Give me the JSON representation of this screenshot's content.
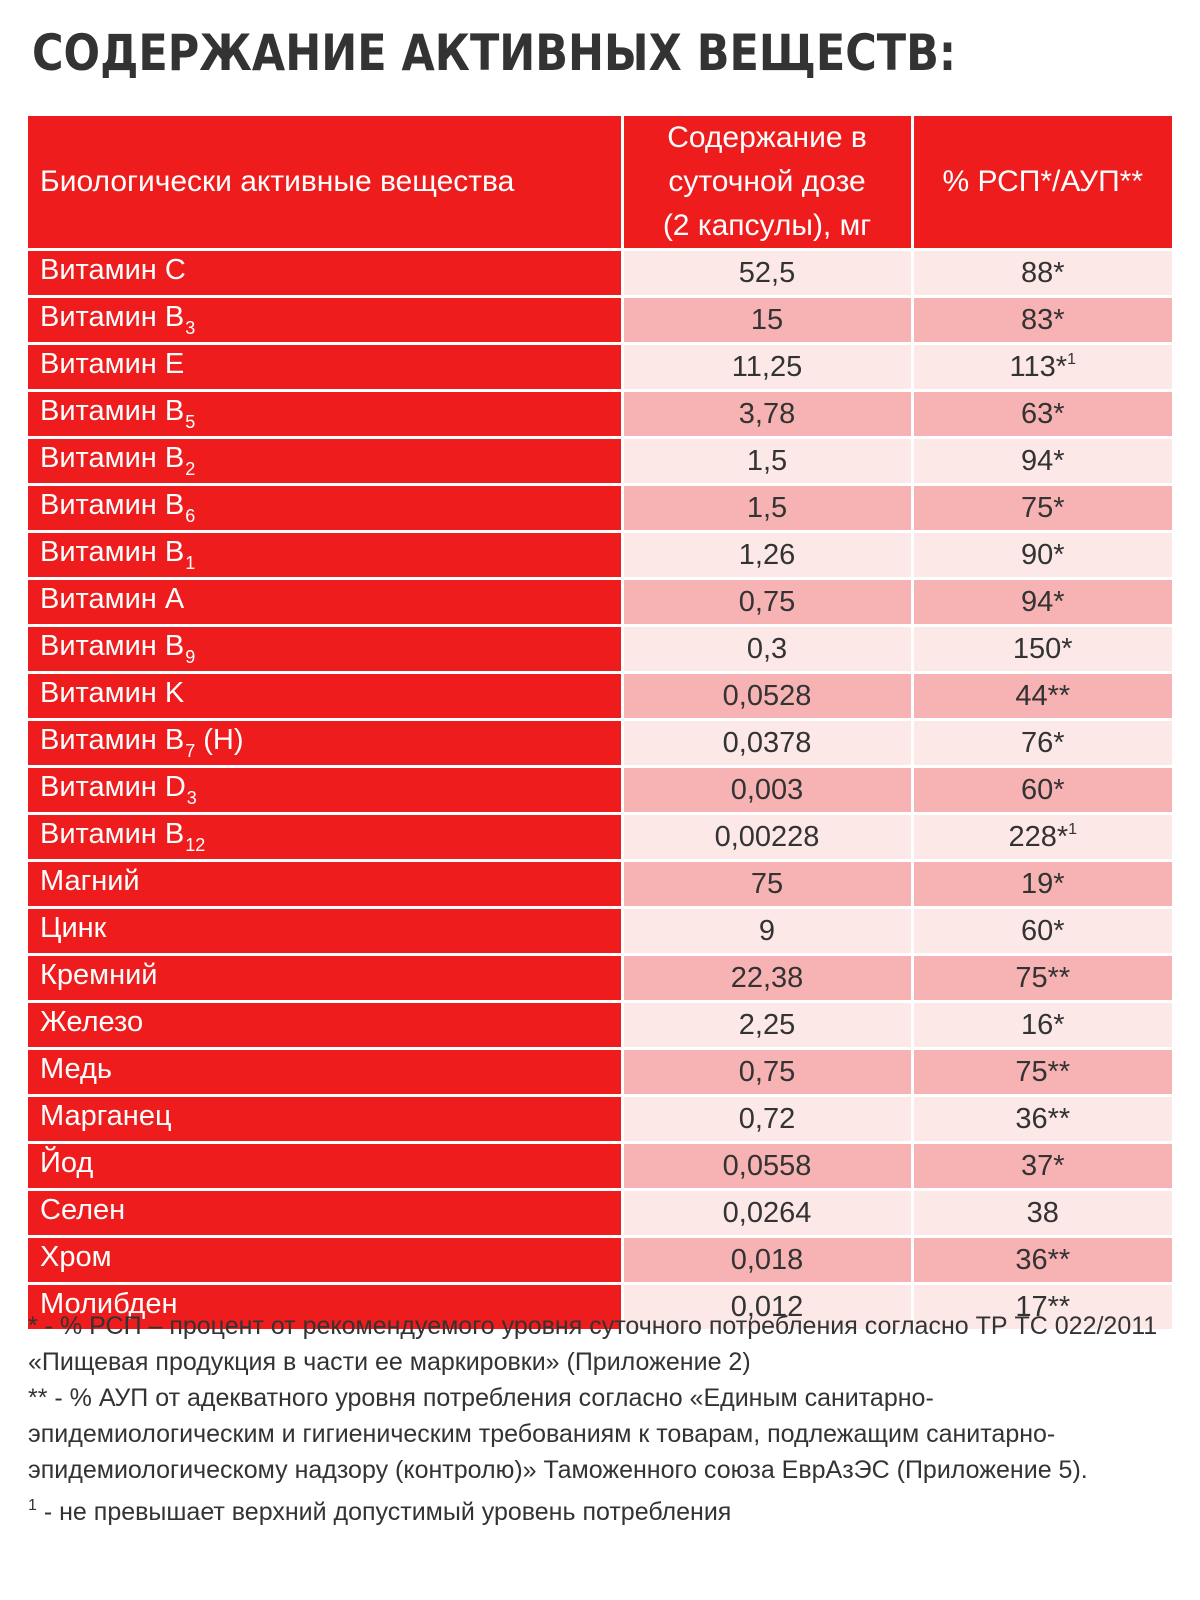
{
  "title": "СОДЕРЖАНИЕ АКТИВНЫХ ВЕЩЕСТВ:",
  "table": {
    "headers": {
      "substance": "Биологически активные вещества",
      "content_line1": "Содержание в",
      "content_line2": "суточной дозе",
      "content_line3": "(2 капсулы), мг",
      "percent": "% РСП*/АУП**"
    },
    "rows": [
      {
        "name": "Витамин C",
        "sub": "",
        "suffix": "",
        "value": "52,5",
        "percent": "88*",
        "percent_sup": ""
      },
      {
        "name": "Витамин B",
        "sub": "3",
        "suffix": "",
        "value": "15",
        "percent": "83*",
        "percent_sup": ""
      },
      {
        "name": "Витамин E",
        "sub": "",
        "suffix": "",
        "value": "11,25",
        "percent": "113*",
        "percent_sup": "1"
      },
      {
        "name": "Витамин B",
        "sub": "5",
        "suffix": "",
        "value": "3,78",
        "percent": "63*",
        "percent_sup": ""
      },
      {
        "name": "Витамин B",
        "sub": "2",
        "suffix": "",
        "value": "1,5",
        "percent": "94*",
        "percent_sup": ""
      },
      {
        "name": "Витамин B",
        "sub": "6",
        "suffix": "",
        "value": "1,5",
        "percent": "75*",
        "percent_sup": ""
      },
      {
        "name": "Витамин B",
        "sub": "1",
        "suffix": "",
        "value": "1,26",
        "percent": "90*",
        "percent_sup": ""
      },
      {
        "name": "Витамин A",
        "sub": "",
        "suffix": "",
        "value": "0,75",
        "percent": "94*",
        "percent_sup": ""
      },
      {
        "name": "Витамин B",
        "sub": "9",
        "suffix": "",
        "value": "0,3",
        "percent": "150*",
        "percent_sup": ""
      },
      {
        "name": "Витамин K",
        "sub": "",
        "suffix": "",
        "value": "0,0528",
        "percent": "44**",
        "percent_sup": ""
      },
      {
        "name": "Витамин B",
        "sub": "7",
        "suffix": " (H)",
        "value": "0,0378",
        "percent": "76*",
        "percent_sup": ""
      },
      {
        "name": "Витамин D",
        "sub": "3",
        "suffix": "",
        "value": "0,003",
        "percent": "60*",
        "percent_sup": ""
      },
      {
        "name": "Витамин B",
        "sub": "12",
        "suffix": "",
        "value": "0,00228",
        "percent": "228*",
        "percent_sup": "1"
      },
      {
        "name": "Магний",
        "sub": "",
        "suffix": "",
        "value": "75",
        "percent": "19*",
        "percent_sup": ""
      },
      {
        "name": "Цинк",
        "sub": "",
        "suffix": "",
        "value": "9",
        "percent": "60*",
        "percent_sup": ""
      },
      {
        "name": "Кремний",
        "sub": "",
        "suffix": "",
        "value": "22,38",
        "percent": "75**",
        "percent_sup": ""
      },
      {
        "name": "Железо",
        "sub": "",
        "suffix": "",
        "value": "2,25",
        "percent": "16*",
        "percent_sup": ""
      },
      {
        "name": "Медь",
        "sub": "",
        "suffix": "",
        "value": "0,75",
        "percent": "75**",
        "percent_sup": ""
      },
      {
        "name": "Марганец",
        "sub": "",
        "suffix": "",
        "value": "0,72",
        "percent": "36**",
        "percent_sup": ""
      },
      {
        "name": "Йод",
        "sub": "",
        "suffix": "",
        "value": "0,0558",
        "percent": "37*",
        "percent_sup": ""
      },
      {
        "name": "Селен",
        "sub": "",
        "suffix": "",
        "value": "0,0264",
        "percent": "38",
        "percent_sup": ""
      },
      {
        "name": "Хром",
        "sub": "",
        "suffix": "",
        "value": "0,018",
        "percent": "36**",
        "percent_sup": ""
      },
      {
        "name": "Молибден",
        "sub": "",
        "suffix": "",
        "value": "0,012",
        "percent": "17**",
        "percent_sup": ""
      }
    ]
  },
  "footnotes": {
    "note1_line1": "* - % РСП – процент от рекомендуемого уровня суточного потребления согласно ТР ТС 022/2011",
    "note1_line2": "«Пищевая продукция в части ее маркировки» (Приложение 2)",
    "note2_line1": "** - % АУП от адекватного уровня потребления согласно «Единым санитарно-",
    "note2_line2": "эпидемиологическим и гигиеническим требованиям к товарам, подлежащим санитарно-",
    "note2_line3": "эпидемиологическому надзору (контролю)» Таможенного союза  ЕврАзЭС (Приложение 5).",
    "note3_mark": "1",
    "note3_text": " - не превышает верхний допустимый уровень потребления"
  },
  "colors": {
    "header_red": "#ee1c1c",
    "row_light": "#fde8e8",
    "row_dark": "#f7b3b3",
    "text_dark": "#333333"
  }
}
